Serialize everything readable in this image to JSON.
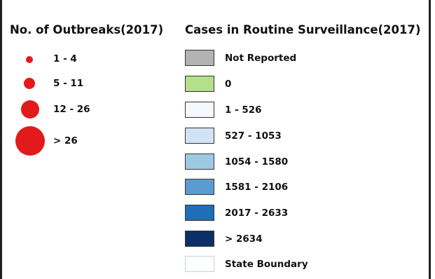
{
  "outbreaks": {
    "title": "No. of Outbreaks(2017)",
    "classes": [
      {
        "label": "1 - 4"
      },
      {
        "label": "5 - 11"
      },
      {
        "label": "12 - 26"
      },
      {
        "label": "> 26"
      }
    ],
    "symbol_color": "#e31a1c"
  },
  "cases": {
    "title": "Cases in Routine Surveillance(2017)",
    "classes": [
      {
        "label": "Not Reported",
        "color": "#b3b3b3"
      },
      {
        "label": "0",
        "color": "#b5e08a"
      },
      {
        "label": "1 - 526",
        "color": "#f5f9ff"
      },
      {
        "label": "527 - 1053",
        "color": "#d2e3f3"
      },
      {
        "label": "1054 - 1580",
        "color": "#9ecae1"
      },
      {
        "label": "1581 - 2106",
        "color": "#5b9bd0"
      },
      {
        "label": "2017 - 2633",
        "color": "#1f6fb8"
      },
      {
        "label": "> 2634",
        "color": "#0b2f66"
      },
      {
        "label": "State Boundary",
        "color": "#ffffff"
      }
    ]
  }
}
